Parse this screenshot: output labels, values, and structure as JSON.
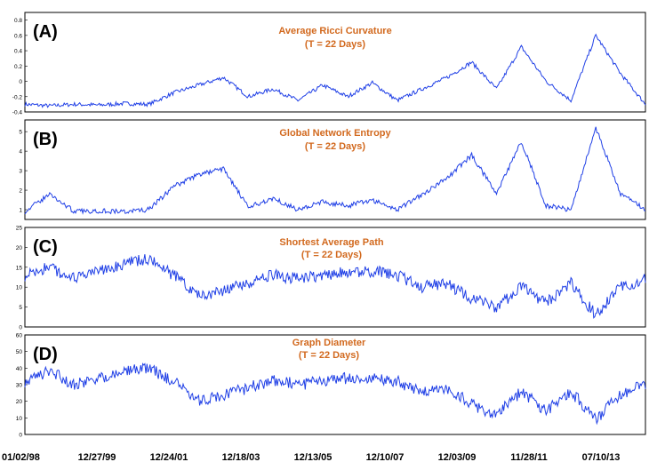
{
  "colors": {
    "line": "#1f3fe6",
    "title": "#d2691e",
    "frame": "#000000",
    "panel_bg": "#ffffff"
  },
  "x_ticks": [
    "01/02/98",
    "12/27/99",
    "12/24/01",
    "12/18/03",
    "12/13/05",
    "12/10/07",
    "12/03/09",
    "11/28/11",
    "07/10/13"
  ],
  "chart_data": [
    {
      "type": "line",
      "panel_label": "(A)",
      "title": "Average Ricci Curvature",
      "subtitle": "(T = 22 Days)",
      "ylim": [
        -0.4,
        0.9
      ],
      "yticks": [
        "-0.4",
        "-0.2",
        "0",
        "0.2",
        "0.4",
        "0.6",
        "0.8"
      ],
      "ytick_values": [
        -0.4,
        -0.2,
        0,
        0.2,
        0.4,
        0.6,
        0.8
      ],
      "x": [
        0,
        4,
        8,
        12,
        16,
        20,
        24,
        28,
        32,
        36,
        40,
        44,
        48,
        52,
        56,
        60,
        64,
        68,
        72,
        76,
        80,
        84,
        88,
        92,
        96,
        100
      ],
      "values": [
        -0.3,
        -0.32,
        -0.3,
        -0.31,
        -0.29,
        -0.3,
        -0.15,
        -0.05,
        0.05,
        -0.2,
        -0.1,
        -0.25,
        -0.05,
        -0.2,
        -0.02,
        -0.25,
        -0.1,
        0.05,
        0.25,
        -0.1,
        0.45,
        0.0,
        -0.25,
        0.6,
        0.1,
        -0.3
      ]
    },
    {
      "type": "line",
      "panel_label": "(B)",
      "title": "Global Network Entropy",
      "subtitle": "(T = 22 Days)",
      "ylim": [
        0.5,
        5.6
      ],
      "yticks": [
        "1",
        "2",
        "3",
        "4",
        "5"
      ],
      "ytick_values": [
        1,
        2,
        3,
        4,
        5
      ],
      "x": [
        0,
        4,
        8,
        12,
        16,
        20,
        24,
        28,
        32,
        36,
        40,
        44,
        48,
        52,
        56,
        60,
        64,
        68,
        72,
        76,
        80,
        84,
        88,
        92,
        96,
        100
      ],
      "values": [
        0.9,
        1.8,
        0.9,
        0.95,
        0.9,
        1.0,
        2.2,
        2.8,
        3.1,
        1.1,
        1.6,
        1.0,
        1.4,
        1.2,
        1.5,
        1.0,
        1.8,
        2.6,
        3.8,
        1.8,
        4.5,
        1.2,
        1.0,
        5.2,
        1.8,
        1.0
      ]
    },
    {
      "type": "line",
      "panel_label": "(C)",
      "title": "Shortest Average Path",
      "subtitle": "(T = 22 Days)",
      "ylim": [
        0,
        25
      ],
      "yticks": [
        "0",
        "5",
        "10",
        "15",
        "20",
        "25"
      ],
      "ytick_values": [
        0,
        5,
        10,
        15,
        20,
        25
      ],
      "x": [
        0,
        4,
        8,
        12,
        16,
        20,
        24,
        28,
        32,
        36,
        40,
        44,
        48,
        52,
        56,
        60,
        64,
        68,
        72,
        76,
        80,
        84,
        88,
        92,
        96,
        100
      ],
      "values": [
        13,
        15,
        12,
        14,
        16,
        17,
        13,
        8,
        9,
        11,
        13,
        12,
        13,
        14,
        14,
        13,
        10,
        11,
        7,
        5,
        10,
        6,
        11,
        3,
        10,
        12
      ]
    },
    {
      "type": "line",
      "panel_label": "(D)",
      "title": "Graph Diameter",
      "subtitle": "(T = 22 Days)",
      "ylim": [
        0,
        60
      ],
      "yticks": [
        "0",
        "10",
        "20",
        "30",
        "40",
        "50",
        "60"
      ],
      "ytick_values": [
        0,
        10,
        20,
        30,
        40,
        50,
        60
      ],
      "x": [
        0,
        4,
        8,
        12,
        16,
        20,
        24,
        28,
        32,
        36,
        40,
        44,
        48,
        52,
        56,
        60,
        64,
        68,
        72,
        76,
        80,
        84,
        88,
        92,
        96,
        100
      ],
      "values": [
        32,
        38,
        30,
        34,
        38,
        40,
        32,
        20,
        24,
        28,
        33,
        30,
        32,
        34,
        34,
        32,
        25,
        28,
        18,
        12,
        26,
        14,
        26,
        9,
        24,
        30
      ]
    }
  ]
}
